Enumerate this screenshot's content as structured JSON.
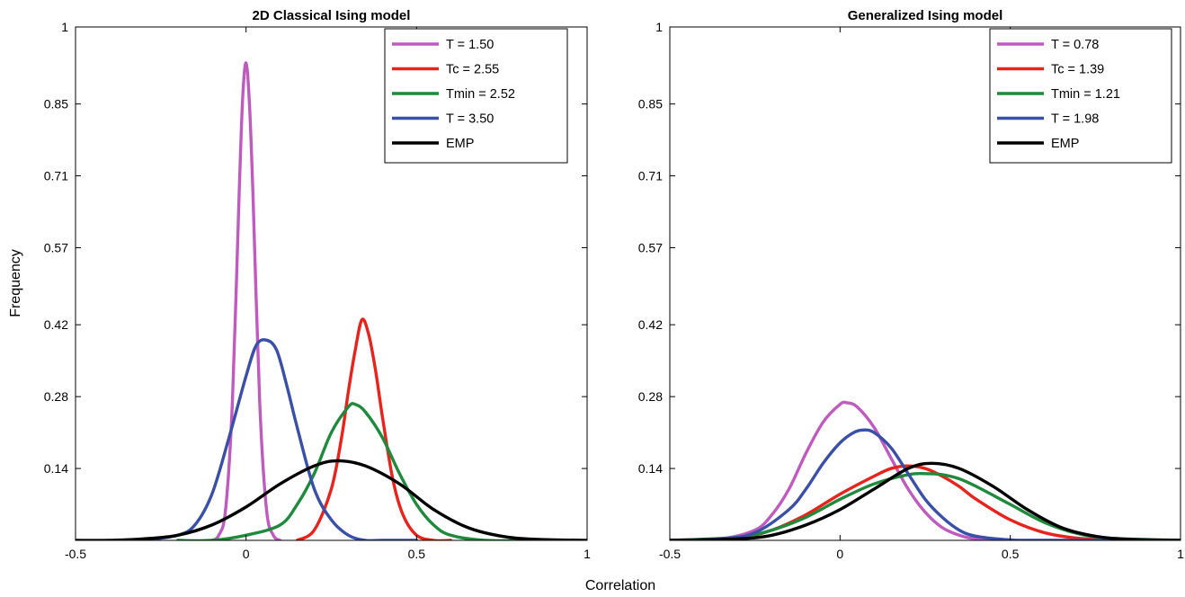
{
  "figure": {
    "xlabel": "Correlation",
    "ylabel": "Frequency"
  },
  "chart_data": [
    {
      "type": "line",
      "title": "2D Classical Ising model",
      "xlim": [
        -0.5,
        1
      ],
      "ylim": [
        0,
        1
      ],
      "xticks": [
        -0.5,
        0,
        0.5,
        1
      ],
      "xtick_labels": [
        "-0.5",
        "0",
        "0.5",
        "1"
      ],
      "yticks": [
        0.14,
        0.28,
        0.42,
        0.57,
        0.71,
        0.85,
        1
      ],
      "ytick_labels": [
        "0.14",
        "0.28",
        "0.42",
        "0.57",
        "0.71",
        "0.85",
        "1"
      ],
      "legend_position": "top-right",
      "series": [
        {
          "name": "T = 1.50",
          "color": "#bf5bbf",
          "x": [
            -0.1,
            -0.08,
            -0.06,
            -0.04,
            -0.02,
            -0.01,
            0.0,
            0.01,
            0.02,
            0.04,
            0.06,
            0.08,
            0.1
          ],
          "y": [
            0.0,
            0.01,
            0.06,
            0.27,
            0.68,
            0.86,
            0.93,
            0.85,
            0.68,
            0.27,
            0.06,
            0.01,
            0.0
          ]
        },
        {
          "name": "Tc = 2.55",
          "color": "#e8231c",
          "x": [
            0.15,
            0.2,
            0.25,
            0.28,
            0.3,
            0.32,
            0.34,
            0.36,
            0.38,
            0.4,
            0.43,
            0.46,
            0.5,
            0.55,
            0.6
          ],
          "y": [
            0.0,
            0.02,
            0.1,
            0.2,
            0.29,
            0.37,
            0.43,
            0.4,
            0.33,
            0.24,
            0.12,
            0.05,
            0.01,
            0.0,
            0.0
          ]
        },
        {
          "name": "Tmin = 2.52",
          "color": "#1f8a3c",
          "x": [
            -0.2,
            -0.1,
            0.0,
            0.1,
            0.15,
            0.2,
            0.25,
            0.3,
            0.32,
            0.35,
            0.4,
            0.45,
            0.5,
            0.55,
            0.6,
            0.7,
            0.8
          ],
          "y": [
            0.0,
            0.0,
            0.01,
            0.03,
            0.07,
            0.13,
            0.21,
            0.26,
            0.265,
            0.25,
            0.2,
            0.13,
            0.07,
            0.03,
            0.01,
            0.0,
            0.0
          ]
        },
        {
          "name": "T = 3.50",
          "color": "#3a4fa8",
          "x": [
            -0.3,
            -0.2,
            -0.15,
            -0.1,
            -0.05,
            0.0,
            0.03,
            0.06,
            0.09,
            0.12,
            0.15,
            0.2,
            0.25,
            0.3,
            0.35,
            0.4,
            0.5
          ],
          "y": [
            0.0,
            0.01,
            0.03,
            0.09,
            0.2,
            0.32,
            0.38,
            0.39,
            0.37,
            0.3,
            0.22,
            0.1,
            0.04,
            0.01,
            0.0,
            0.0,
            0.0
          ]
        },
        {
          "name": "EMP",
          "color": "#000000",
          "x": [
            -0.5,
            -0.4,
            -0.3,
            -0.2,
            -0.1,
            0.0,
            0.1,
            0.2,
            0.27,
            0.35,
            0.45,
            0.55,
            0.65,
            0.75,
            0.85,
            1.0
          ],
          "y": [
            0.0,
            0.0,
            0.003,
            0.01,
            0.03,
            0.065,
            0.11,
            0.145,
            0.155,
            0.145,
            0.11,
            0.06,
            0.025,
            0.008,
            0.002,
            0.0
          ]
        }
      ]
    },
    {
      "type": "line",
      "title": "Generalized Ising model",
      "xlim": [
        -0.5,
        1
      ],
      "ylim": [
        0,
        1
      ],
      "xticks": [
        -0.5,
        0,
        0.5,
        1
      ],
      "xtick_labels": [
        "-0.5",
        "0",
        "0.5",
        "1"
      ],
      "yticks": [
        0.14,
        0.28,
        0.42,
        0.57,
        0.71,
        0.85,
        1
      ],
      "ytick_labels": [
        "0.14",
        "0.28",
        "0.42",
        "0.57",
        "0.71",
        "0.85",
        "1"
      ],
      "legend_position": "top-right",
      "series": [
        {
          "name": "T = 0.78",
          "color": "#bf5bbf",
          "x": [
            -0.5,
            -0.35,
            -0.25,
            -0.2,
            -0.15,
            -0.1,
            -0.05,
            0.0,
            0.02,
            0.05,
            0.1,
            0.15,
            0.2,
            0.25,
            0.3,
            0.35,
            0.4,
            0.5,
            0.6,
            1.0
          ],
          "y": [
            0.0,
            0.003,
            0.02,
            0.05,
            0.1,
            0.17,
            0.23,
            0.265,
            0.268,
            0.26,
            0.22,
            0.16,
            0.1,
            0.055,
            0.025,
            0.01,
            0.003,
            0.0,
            0.0,
            0.0
          ]
        },
        {
          "name": "Tc = 1.39",
          "color": "#e8231c",
          "x": [
            -0.5,
            -0.3,
            -0.2,
            -0.1,
            0.0,
            0.1,
            0.15,
            0.2,
            0.25,
            0.3,
            0.35,
            0.4,
            0.5,
            0.6,
            0.7,
            0.8,
            1.0
          ],
          "y": [
            0.0,
            0.005,
            0.02,
            0.05,
            0.09,
            0.125,
            0.14,
            0.145,
            0.14,
            0.125,
            0.105,
            0.08,
            0.04,
            0.015,
            0.004,
            0.001,
            0.0
          ]
        },
        {
          "name": "Tmin = 1.21",
          "color": "#1f8a3c",
          "x": [
            -0.5,
            -0.3,
            -0.2,
            -0.1,
            0.0,
            0.1,
            0.2,
            0.25,
            0.3,
            0.35,
            0.4,
            0.5,
            0.6,
            0.7,
            0.8,
            1.0
          ],
          "y": [
            0.0,
            0.006,
            0.02,
            0.045,
            0.08,
            0.11,
            0.128,
            0.13,
            0.128,
            0.12,
            0.105,
            0.07,
            0.035,
            0.013,
            0.004,
            0.0
          ]
        },
        {
          "name": "T = 1.98",
          "color": "#3a4fa8",
          "x": [
            -0.5,
            -0.35,
            -0.25,
            -0.15,
            -0.1,
            -0.05,
            0.0,
            0.04,
            0.07,
            0.1,
            0.15,
            0.2,
            0.25,
            0.3,
            0.35,
            0.4,
            0.5,
            0.6,
            1.0
          ],
          "y": [
            0.0,
            0.003,
            0.015,
            0.06,
            0.1,
            0.15,
            0.19,
            0.21,
            0.215,
            0.21,
            0.18,
            0.13,
            0.08,
            0.045,
            0.02,
            0.008,
            0.001,
            0.0,
            0.0
          ]
        },
        {
          "name": "EMP",
          "color": "#000000",
          "x": [
            -0.5,
            -0.3,
            -0.2,
            -0.1,
            0.0,
            0.1,
            0.2,
            0.27,
            0.35,
            0.45,
            0.55,
            0.65,
            0.75,
            0.85,
            1.0
          ],
          "y": [
            0.0,
            0.003,
            0.01,
            0.03,
            0.06,
            0.1,
            0.14,
            0.15,
            0.14,
            0.105,
            0.06,
            0.025,
            0.008,
            0.002,
            0.0
          ]
        }
      ]
    }
  ]
}
